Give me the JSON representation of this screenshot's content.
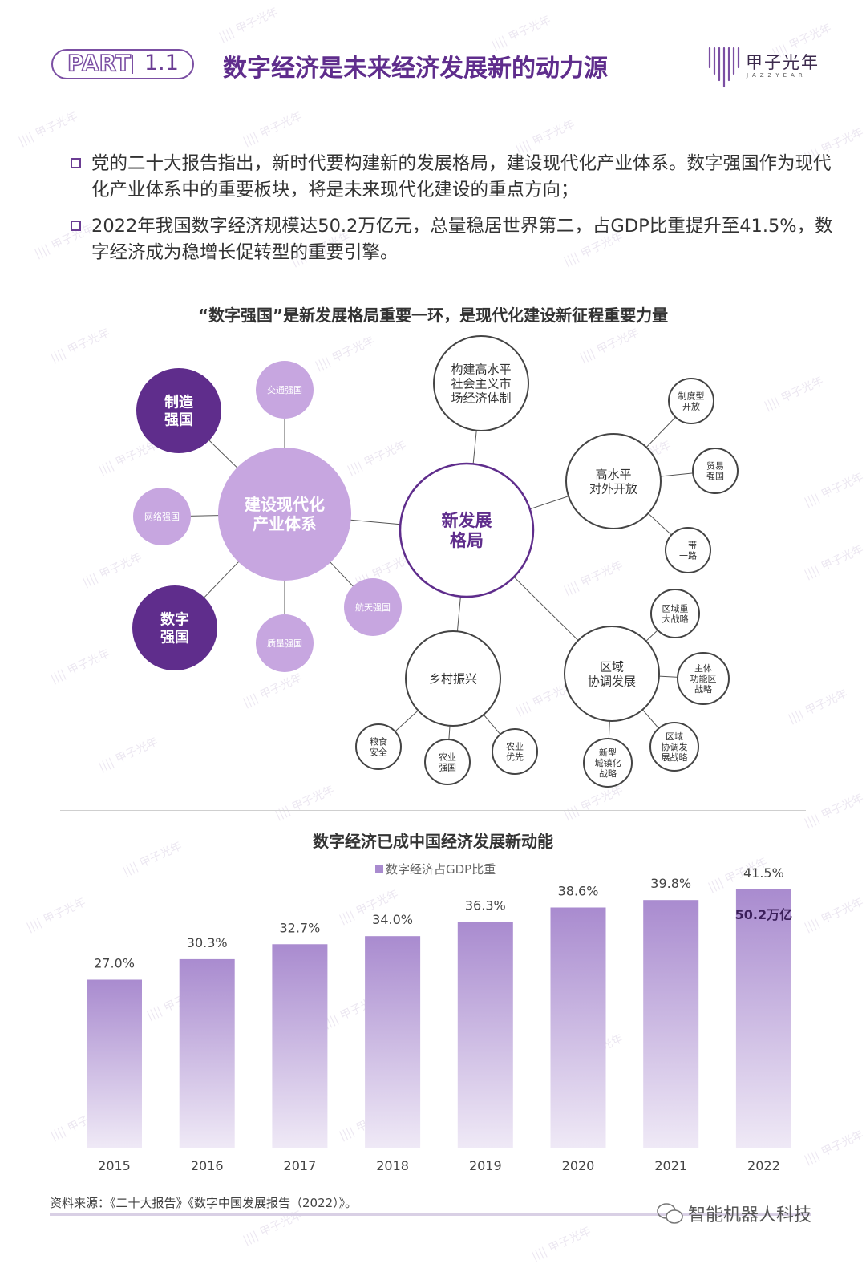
{
  "header": {
    "part_label": "PART",
    "part_number": "1.1",
    "title": "数字经济是未来经济发展新的动力源",
    "logo_text": "甲子光年",
    "logo_sub": "JAZZYEAR"
  },
  "bullets": [
    {
      "text": "党的二十大报告指出，新时代要构建新的发展格局，建设现代化产业体系。数字强国作为现代化产业体系中的重要板块，将是未来现代化建设的重点方向；"
    },
    {
      "text": "2022年我国数字经济规模达50.2万亿元，总量稳居世界第二，占GDP比重提升至41.5%，数字经济成为稳增长促转型的重要引擎。"
    }
  ],
  "diagram": {
    "title": "“数字强国”是新发展格局重要一环，是现代化建设新征程重要力量",
    "hub_left": "建设现代化\n产业体系",
    "hub_center": "新发展\n格局",
    "left_nodes": [
      "制造\n强国",
      "交通强国",
      "网络强国",
      "航天强国",
      "数字\n强国",
      "质量强国"
    ],
    "right_nodes": {
      "top": "构建高水平\n社会主义市\n场经济体制",
      "open": "高水平\n对外开放",
      "open_children": [
        "制度型\n开放",
        "贸易\n强国",
        "一带\n一路"
      ],
      "rural": "乡村振兴",
      "rural_children": [
        "粮食\n安全",
        "农业\n强国",
        "农业\n优先"
      ],
      "region": "区域\n协调发展",
      "region_children": [
        "区域重\n大战略",
        "主体\n功能区\n战略",
        "区域\n协调发\n展战略",
        "新型\n城镇化\n战略"
      ]
    }
  },
  "chart_data": {
    "type": "bar",
    "title": "数字经济已成中国经济发展新动能",
    "series": [
      {
        "name": "数字经济占GDP比重",
        "values": [
          27.0,
          30.3,
          32.7,
          34.0,
          36.3,
          38.6,
          39.8,
          41.5
        ]
      }
    ],
    "categories": [
      "2015",
      "2016",
      "2017",
      "2018",
      "2019",
      "2020",
      "2021",
      "2022"
    ],
    "value_labels": [
      "27.0%",
      "30.3%",
      "32.7%",
      "34.0%",
      "36.3%",
      "38.6%",
      "39.8%",
      "41.5%"
    ],
    "annotation": "50.2万亿",
    "ylim": [
      0,
      41.5
    ],
    "bar_color": "#a98bcf",
    "grid": false,
    "legend_position": "top"
  },
  "footer": {
    "source": "资料来源：《二十大报告》《数字中国发展报告（2022）》。",
    "wechat": "智能机器人科技"
  },
  "colors": {
    "primary": "#6b3d94",
    "deep": "#5f2d8c",
    "light": "#c7a6e0"
  }
}
